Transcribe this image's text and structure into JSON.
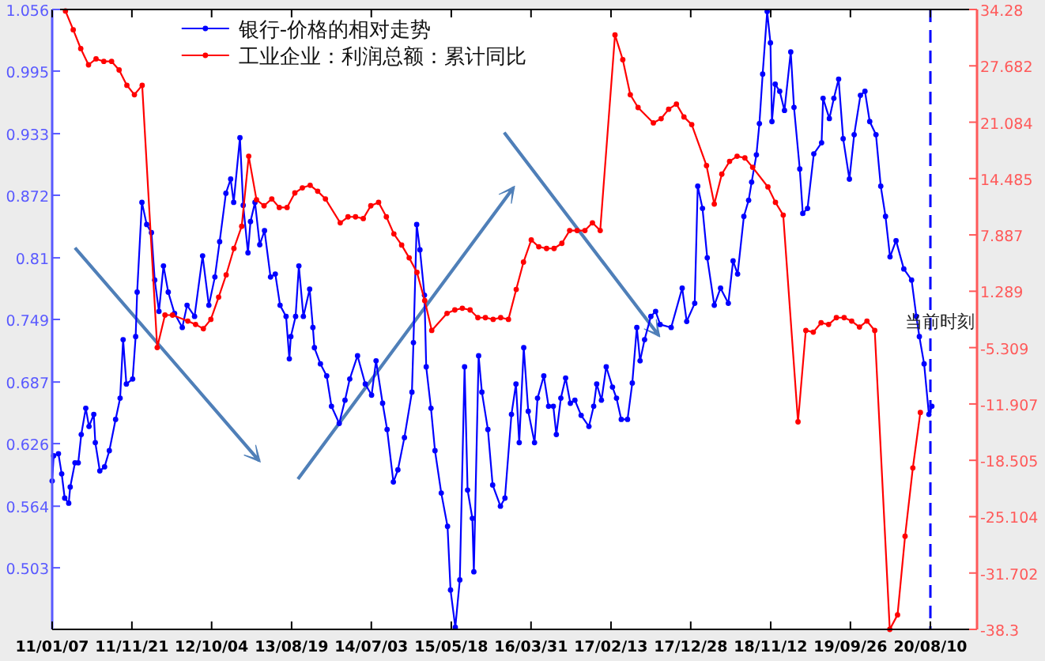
{
  "chart_data": {
    "type": "line",
    "xlim": [
      "2011-01-07",
      "2021-02-12"
    ],
    "xticks": [
      {
        "value": "2011-01-07",
        "label": "11/01/07"
      },
      {
        "value": "2011-11-21",
        "label": "11/11/21"
      },
      {
        "value": "2012-10-04",
        "label": "12/10/04"
      },
      {
        "value": "2013-08-19",
        "label": "13/08/19"
      },
      {
        "value": "2014-07-03",
        "label": "14/07/03"
      },
      {
        "value": "2015-05-18",
        "label": "15/05/18"
      },
      {
        "value": "2016-03-31",
        "label": "16/03/31"
      },
      {
        "value": "2017-02-13",
        "label": "17/02/13"
      },
      {
        "value": "2017-12-28",
        "label": "17/12/28"
      },
      {
        "value": "2018-11-12",
        "label": "18/11/12"
      },
      {
        "value": "2019-09-26",
        "label": "19/09/26"
      },
      {
        "value": "2020-08-10",
        "label": "20/08/10"
      }
    ],
    "ylim": [
      0.442,
      1.056
    ],
    "yticks": [
      1.056,
      0.995,
      0.933,
      0.872,
      0.81,
      0.749,
      0.687,
      0.626,
      0.564,
      0.503
    ],
    "y2lim": [
      -38.3,
      34.28
    ],
    "y2ticks": [
      34.28,
      27.682,
      21.084,
      14.485,
      7.887,
      1.289,
      -5.309,
      -11.907,
      -18.505,
      -25.104,
      -31.702,
      -38.3
    ],
    "legend": "top left",
    "marker": "circle",
    "line_style": "solid",
    "ref_lines": [
      {
        "axis": "x",
        "value": "2020-08-10",
        "label": "当前时刻",
        "color": "#0000ff",
        "line_style": "dashed"
      }
    ],
    "series": [
      {
        "name": "银行-价格的相对走势",
        "color": "#0000ff",
        "axis": "y",
        "x": [
          "2011-01-07",
          "2011-01-13",
          "2011-02-01",
          "2011-02-14",
          "2011-02-26",
          "2011-03-14",
          "2011-03-20",
          "2011-04-08",
          "2011-04-21",
          "2011-05-03",
          "2011-05-21",
          "2011-06-03",
          "2011-06-22",
          "2011-06-28",
          "2011-07-16",
          "2011-08-04",
          "2011-08-23",
          "2011-09-17",
          "2011-10-05",
          "2011-10-17",
          "2011-10-30",
          "2011-11-24",
          "2011-12-06",
          "2011-12-12",
          "2011-12-31",
          "2012-01-19",
          "2012-02-07",
          "2012-02-20",
          "2012-03-08",
          "2012-03-26",
          "2012-04-14",
          "2012-05-09",
          "2012-06-09",
          "2012-06-28",
          "2012-07-28",
          "2012-08-29",
          "2012-09-23",
          "2012-10-17",
          "2012-11-05",
          "2012-11-30",
          "2012-12-19",
          "2012-12-31",
          "2013-01-25",
          "2013-02-07",
          "2013-02-26",
          "2013-03-08",
          "2013-03-26",
          "2013-04-14",
          "2013-05-03",
          "2013-05-27",
          "2013-06-15",
          "2013-07-04",
          "2013-07-28",
          "2013-08-10",
          "2013-08-16",
          "2013-09-04",
          "2013-09-17",
          "2013-10-05",
          "2013-10-30",
          "2013-11-12",
          "2013-11-18",
          "2013-12-12",
          "2014-01-06",
          "2014-01-25",
          "2014-02-25",
          "2014-03-20",
          "2014-04-08",
          "2014-05-09",
          "2014-06-09",
          "2014-07-04",
          "2014-07-22",
          "2014-08-17",
          "2014-09-04",
          "2014-09-29",
          "2014-10-17",
          "2014-11-12",
          "2014-12-12",
          "2014-12-18",
          "2014-12-31",
          "2015-01-13",
          "2015-01-31",
          "2015-02-07",
          "2015-02-26",
          "2015-03-14",
          "2015-04-08",
          "2015-05-03",
          "2015-05-15",
          "2015-06-03",
          "2015-06-21",
          "2015-07-10",
          "2015-07-22",
          "2015-08-10",
          "2015-08-16",
          "2015-09-04",
          "2015-09-17",
          "2015-10-11",
          "2015-10-30",
          "2015-11-30",
          "2015-12-18",
          "2016-01-13",
          "2016-01-31",
          "2016-02-13",
          "2016-03-02",
          "2016-03-20",
          "2016-04-14",
          "2016-04-26",
          "2016-05-21",
          "2016-06-09",
          "2016-06-28",
          "2016-07-10",
          "2016-07-28",
          "2016-08-16",
          "2016-09-04",
          "2016-09-22",
          "2016-10-17",
          "2016-11-17",
          "2016-12-06",
          "2016-12-18",
          "2017-01-06",
          "2017-01-25",
          "2017-02-19",
          "2017-03-07",
          "2017-03-26",
          "2017-04-20",
          "2017-05-09",
          "2017-05-27",
          "2017-06-09",
          "2017-06-27",
          "2017-07-22",
          "2017-08-10",
          "2017-08-28",
          "2017-10-11",
          "2017-11-24",
          "2017-12-12",
          "2018-01-13",
          "2018-01-25",
          "2018-02-13",
          "2018-03-04",
          "2018-04-01",
          "2018-04-26",
          "2018-05-27",
          "2018-06-15",
          "2018-07-03",
          "2018-07-28",
          "2018-08-16",
          "2018-08-28",
          "2018-09-16",
          "2018-09-28",
          "2018-10-11",
          "2018-10-29",
          "2018-11-11",
          "2018-11-17",
          "2018-11-30",
          "2018-12-18",
          "2019-01-06",
          "2019-01-31",
          "2019-02-13",
          "2019-03-08",
          "2019-03-20",
          "2019-04-08",
          "2019-05-03",
          "2019-06-03",
          "2019-06-09",
          "2019-07-04",
          "2019-07-22",
          "2019-08-10",
          "2019-08-28",
          "2019-09-22",
          "2019-10-11",
          "2019-11-05",
          "2019-11-23",
          "2019-12-12",
          "2020-01-06",
          "2020-01-25",
          "2020-02-13",
          "2020-03-02",
          "2020-03-26",
          "2020-04-26",
          "2020-05-27",
          "2020-06-15",
          "2020-06-27",
          "2020-07-16",
          "2020-08-04",
          "2020-08-16"
        ],
        "values": [
          0.589,
          0.614,
          0.616,
          0.596,
          0.572,
          0.567,
          0.583,
          0.607,
          0.607,
          0.635,
          0.661,
          0.643,
          0.655,
          0.627,
          0.599,
          0.603,
          0.619,
          0.65,
          0.671,
          0.729,
          0.685,
          0.69,
          0.732,
          0.776,
          0.865,
          0.843,
          0.835,
          0.788,
          0.757,
          0.802,
          0.776,
          0.755,
          0.741,
          0.763,
          0.752,
          0.812,
          0.763,
          0.791,
          0.826,
          0.874,
          0.888,
          0.865,
          0.929,
          0.862,
          0.815,
          0.846,
          0.865,
          0.823,
          0.837,
          0.791,
          0.794,
          0.763,
          0.752,
          0.71,
          0.732,
          0.752,
          0.802,
          0.752,
          0.779,
          0.741,
          0.721,
          0.705,
          0.693,
          0.663,
          0.646,
          0.669,
          0.69,
          0.713,
          0.685,
          0.674,
          0.708,
          0.666,
          0.64,
          0.588,
          0.6,
          0.632,
          0.677,
          0.726,
          0.843,
          0.818,
          0.773,
          0.702,
          0.661,
          0.619,
          0.577,
          0.544,
          0.481,
          0.444,
          0.491,
          0.702,
          0.58,
          0.552,
          0.499,
          0.713,
          0.677,
          0.64,
          0.585,
          0.564,
          0.572,
          0.655,
          0.685,
          0.627,
          0.721,
          0.658,
          0.627,
          0.671,
          0.693,
          0.663,
          0.663,
          0.635,
          0.671,
          0.691,
          0.666,
          0.669,
          0.654,
          0.643,
          0.663,
          0.685,
          0.669,
          0.702,
          0.682,
          0.671,
          0.65,
          0.65,
          0.686,
          0.741,
          0.708,
          0.729,
          0.752,
          0.757,
          0.744,
          0.741,
          0.78,
          0.747,
          0.765,
          0.881,
          0.859,
          0.81,
          0.763,
          0.78,
          0.765,
          0.807,
          0.794,
          0.851,
          0.867,
          0.885,
          0.912,
          0.943,
          0.992,
          1.054,
          1.023,
          0.945,
          0.982,
          0.975,
          0.956,
          1.014,
          0.959,
          0.898,
          0.854,
          0.859,
          0.913,
          0.924,
          0.968,
          0.948,
          0.968,
          0.987,
          0.928,
          0.888,
          0.932,
          0.971,
          0.975,
          0.945,
          0.932,
          0.881,
          0.851,
          0.811,
          0.827,
          0.799,
          0.788,
          0.752,
          0.732,
          0.705,
          0.655,
          0.663
        ]
      },
      {
        "name": "工业企业：利润总额：累计同比",
        "color": "#ff0000",
        "axis": "y2",
        "x": [
          "2011-03",
          "2011-04",
          "2011-05",
          "2011-06",
          "2011-07",
          "2011-08",
          "2011-09",
          "2011-10",
          "2011-11",
          "2011-12",
          "2012-01",
          "2012-03",
          "2012-04",
          "2012-05",
          "2012-07",
          "2012-08",
          "2012-09",
          "2012-10",
          "2012-11",
          "2012-12",
          "2013-01",
          "2013-02",
          "2013-03",
          "2013-04",
          "2013-05",
          "2013-06",
          "2013-07",
          "2013-08",
          "2013-09",
          "2013-10",
          "2013-11",
          "2013-12",
          "2014-01",
          "2014-03",
          "2014-04",
          "2014-05",
          "2014-06",
          "2014-07",
          "2014-08",
          "2014-09",
          "2014-10",
          "2014-11",
          "2014-12",
          "2015-01",
          "2015-02",
          "2015-03",
          "2015-05",
          "2015-06",
          "2015-07",
          "2015-08",
          "2015-09",
          "2015-10",
          "2015-11",
          "2015-12",
          "2016-01",
          "2016-02",
          "2016-03",
          "2016-04",
          "2016-05",
          "2016-06",
          "2016-07",
          "2016-08",
          "2016-09",
          "2016-10",
          "2016-11",
          "2016-12",
          "2017-01",
          "2017-03",
          "2017-04",
          "2017-05",
          "2017-06",
          "2017-08",
          "2017-09",
          "2017-10",
          "2017-11",
          "2017-12",
          "2018-01",
          "2018-03",
          "2018-04",
          "2018-05",
          "2018-06",
          "2018-07",
          "2018-08",
          "2018-09",
          "2018-11",
          "2018-12",
          "2019-01",
          "2019-03",
          "2019-04",
          "2019-05",
          "2019-06",
          "2019-07",
          "2019-08",
          "2019-09",
          "2019-10",
          "2019-11",
          "2019-12",
          "2020-01",
          "2020-03",
          "2020-04",
          "2020-05",
          "2020-06",
          "2020-07"
        ],
        "values": [
          34.1,
          31.9,
          29.7,
          27.8,
          28.5,
          28.2,
          28.2,
          27.2,
          25.4,
          24.3,
          25.4,
          -5.3,
          -1.5,
          -1.5,
          -2.2,
          -2.6,
          -3.1,
          -2.0,
          0.6,
          3.2,
          6.3,
          8.9,
          17.1,
          12.0,
          11.3,
          12.1,
          11.1,
          11.1,
          12.8,
          13.4,
          13.7,
          13.0,
          12.1,
          9.3,
          10.0,
          10.0,
          9.8,
          11.3,
          11.7,
          10.0,
          8.0,
          6.7,
          5.2,
          3.5,
          0.2,
          -3.3,
          -1.3,
          -0.9,
          -0.7,
          -0.9,
          -1.8,
          -1.8,
          -2.0,
          -1.8,
          -2.0,
          1.5,
          4.7,
          7.3,
          6.5,
          6.3,
          6.3,
          6.9,
          8.4,
          8.4,
          8.4,
          9.3,
          8.4,
          31.3,
          28.4,
          24.3,
          22.8,
          21.0,
          21.5,
          22.6,
          23.2,
          21.7,
          20.8,
          16.0,
          11.5,
          15.0,
          16.5,
          17.1,
          16.9,
          15.8,
          13.5,
          11.7,
          10.2,
          -14.0,
          -3.3,
          -3.5,
          -2.4,
          -2.6,
          -1.8,
          -1.8,
          -2.2,
          -2.9,
          -2.2,
          -3.3,
          -38.3,
          -36.6,
          -27.4,
          -19.4,
          -12.9
        ]
      }
    ]
  }
}
